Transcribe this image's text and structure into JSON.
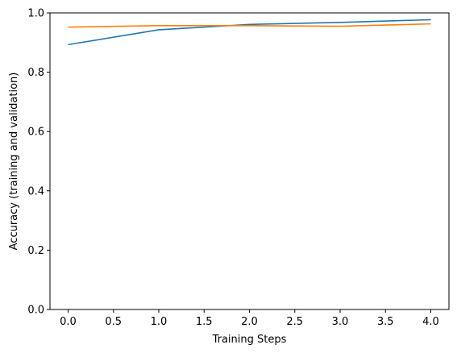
{
  "chart_data": {
    "type": "line",
    "xlabel": "Training Steps",
    "ylabel": "Accuracy (training and validation)",
    "xlim": [
      -0.2,
      4.2
    ],
    "ylim": [
      0.0,
      1.0
    ],
    "xticks": [
      0.0,
      0.5,
      1.0,
      1.5,
      2.0,
      2.5,
      3.0,
      3.5,
      4.0
    ],
    "xtick_labels": [
      "0.0",
      "0.5",
      "1.0",
      "1.5",
      "2.0",
      "2.5",
      "3.0",
      "3.5",
      "4.0"
    ],
    "yticks": [
      0.0,
      0.2,
      0.4,
      0.6,
      0.8,
      1.0
    ],
    "ytick_labels": [
      "0.0",
      "0.2",
      "0.4",
      "0.6",
      "0.8",
      "1.0"
    ],
    "grid": false,
    "x": [
      0,
      1,
      2,
      3,
      4
    ],
    "series": [
      {
        "values": [
          0.893,
          0.943,
          0.961,
          0.968,
          0.977
        ],
        "color": "#1f77b4"
      },
      {
        "values": [
          0.952,
          0.957,
          0.957,
          0.955,
          0.963
        ],
        "color": "#ff7f0e"
      }
    ]
  }
}
